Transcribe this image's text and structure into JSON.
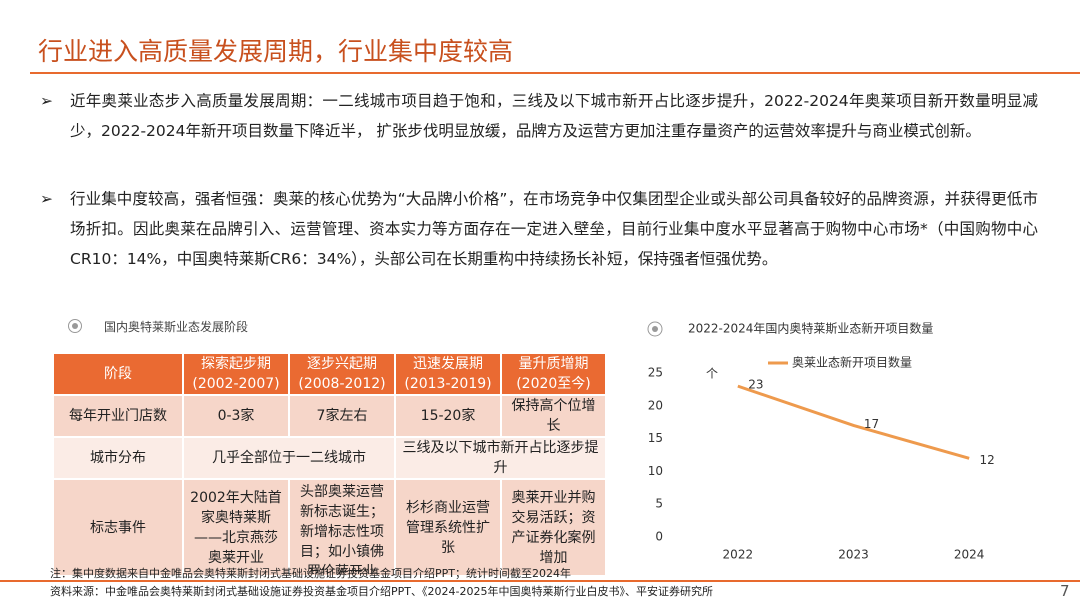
{
  "header": {
    "title": "行业进入高质量发展周期，行业集中度较高"
  },
  "bullets": [
    "近年奥莱业态步入高质量发展周期：一二线城市项目趋于饱和，三线及以下城市新开占比逐步提升，2022-2024年奥莱项目新开数量明显减少，2022-2024年新开项目数量下降近半， 扩张步伐明显放缓，品牌方及运营方更加注重存量资产的运营效率提升与商业模式创新。",
    "行业集中度较高，强者恒强：奥莱的核心优势为“大品牌小价格”，在市场竞争中仅集团型企业或头部公司具备较好的品牌资源，并获得更低市场折扣。因此奥莱在品牌引入、运营管理、资本实力等方面存在一定进入壁垒，目前行业集中度水平显著高于购物中心市场*（中国购物中心CR10：14%，中国奥特莱斯CR6：34%），头部公司在长期重构中持续扬长补短，保持强者恒强优势。"
  ],
  "table": {
    "title": "国内奥特莱斯业态发展阶段",
    "corner": "阶段",
    "stages": [
      {
        "name": "探索起步期",
        "period": "(2002-2007)"
      },
      {
        "name": "逐步兴起期",
        "period": "(2008-2012)"
      },
      {
        "name": "迅速发展期",
        "period": "(2013-2019)"
      },
      {
        "name": "量升质增期",
        "period": "(2020至今)"
      }
    ],
    "rows": [
      {
        "label": "每年开业门店数",
        "cells": [
          "0-3家",
          "7家左右",
          "15-20家",
          "保持高个位增长"
        ]
      },
      {
        "label": "城市分布",
        "cells": [
          "几乎全部位于一二线城市",
          "三线及以下城市新开占比逐步提升"
        ]
      },
      {
        "label": "标志事件",
        "cells": [
          "2002年大陆首家奥特莱斯——北京燕莎奥莱开业",
          "头部奥莱运营新标志诞生；新增标志性项目；如小镇佛罗伦萨开业",
          "杉杉商业运营管理系统性扩张",
          "奥莱开业并购交易活跃；资产证券化案例增加"
        ]
      }
    ]
  },
  "chart_data": {
    "type": "line",
    "title": "2022-2024年国内奥特莱斯业态新开项目数量",
    "y_unit": "个",
    "categories": [
      "2022",
      "2023",
      "2024"
    ],
    "series": [
      {
        "name": "奥莱业态新开项目数量",
        "color": "#ee9a4d",
        "values": [
          23,
          17,
          12
        ]
      }
    ],
    "ylim": [
      0,
      25
    ],
    "yticks": [
      0,
      5,
      10,
      15,
      20,
      25
    ],
    "grid": false
  },
  "footer": {
    "note": "注：集中度数据来自中金唯品会奥特莱斯封闭式基础设施证券投资基金项目介绍PPT；统计时间截至2024年",
    "source": "资料来源：中金唯品会奥特莱斯封闭式基础设施证券投资基金项目介绍PPT、《2024-2025年中国奥特莱斯行业白皮书》、平安证券研究所",
    "page": 7
  }
}
